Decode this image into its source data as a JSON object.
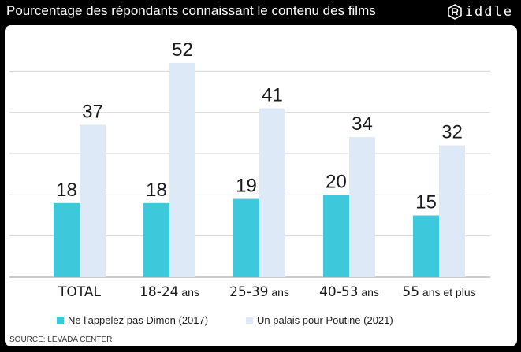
{
  "header": {
    "title": "Pourcentage des répondants connaissant le contenu des films",
    "logo_text": "iddle"
  },
  "source": "SOURCE: LEVADA CENTER",
  "colors": {
    "series1": "#3ec8dc",
    "series2": "#dde9f7",
    "grid": "#d4d4d4",
    "text": "#1a1a1a"
  },
  "chart_data": {
    "type": "bar",
    "title": "Pourcentage des répondants connaissant le contenu des films",
    "categories": [
      {
        "main": "TOTAL",
        "suffix": ""
      },
      {
        "main": "18-24",
        "suffix": "ans"
      },
      {
        "main": "25-39",
        "suffix": "ans"
      },
      {
        "main": "40-53",
        "suffix": "ans"
      },
      {
        "main": "55",
        "suffix": "ans et plus"
      }
    ],
    "series": [
      {
        "name": "Ne l'appelez pas Dimon (2017)",
        "values": [
          18,
          18,
          19,
          20,
          15
        ]
      },
      {
        "name": "Un palais pour Poutine (2021)",
        "values": [
          37,
          52,
          41,
          34,
          32
        ]
      }
    ],
    "ylim": [
      0,
      56
    ],
    "grid": true,
    "legend_position": "bottom-left"
  }
}
